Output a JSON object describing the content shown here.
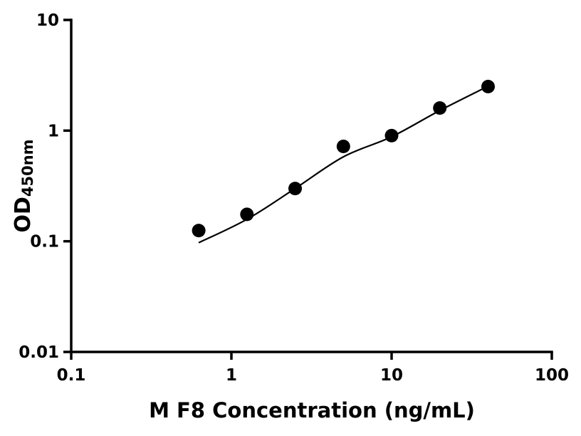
{
  "chart_data": {
    "type": "scatter",
    "title": "",
    "xlabel": "M F8 Concentration (ng/mL)",
    "ylabel_main": "OD",
    "ylabel_sub": "450nm",
    "x_scale": "log",
    "y_scale": "log",
    "xlim": [
      0.1,
      100
    ],
    "ylim": [
      0.01,
      10
    ],
    "grid": false,
    "legend": false,
    "background_color": "#ffffff",
    "axis_color": "#000000",
    "marker_color": "#000000",
    "line_color": "#000000",
    "x_ticks": [
      {
        "value": 0.1,
        "label": "0.1"
      },
      {
        "value": 1,
        "label": "1"
      },
      {
        "value": 10,
        "label": "10"
      },
      {
        "value": 100,
        "label": "100"
      }
    ],
    "y_ticks": [
      {
        "value": 0.01,
        "label": "0.01"
      },
      {
        "value": 0.1,
        "label": "0.1"
      },
      {
        "value": 1,
        "label": "1"
      },
      {
        "value": 10,
        "label": "10"
      }
    ],
    "series": [
      {
        "name": "standard-points",
        "type": "scatter",
        "x": [
          0.625,
          1.25,
          2.5,
          5,
          10,
          20,
          40
        ],
        "y": [
          0.125,
          0.175,
          0.3,
          0.72,
          0.9,
          1.6,
          2.5
        ]
      },
      {
        "name": "fit-curve",
        "type": "line",
        "x": [
          0.625,
          1.25,
          2.5,
          5,
          10,
          20,
          40
        ],
        "y": [
          0.097,
          0.158,
          0.3,
          0.58,
          0.88,
          1.52,
          2.52
        ]
      }
    ]
  }
}
